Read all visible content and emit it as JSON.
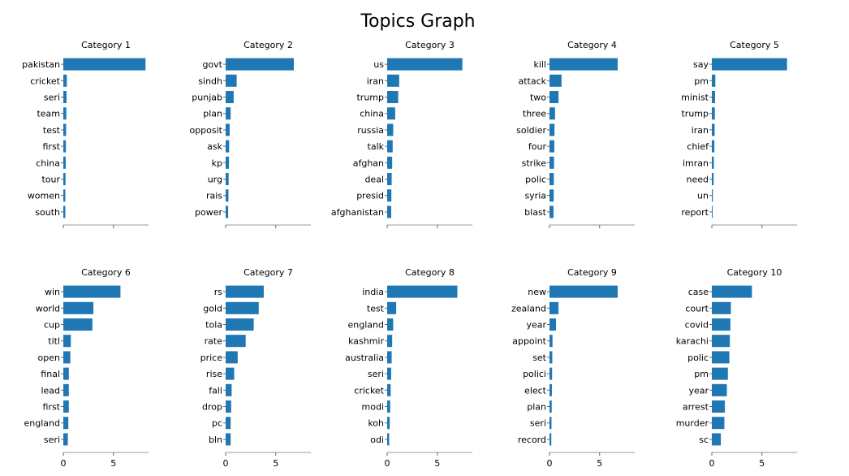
{
  "title": "Topics Graph",
  "chart_data": [
    {
      "type": "bar",
      "orientation": "horizontal",
      "title": "Category 1",
      "categories": [
        "pakistan",
        "cricket",
        "seri",
        "team",
        "test",
        "first",
        "china",
        "tour",
        "women",
        "south"
      ],
      "values": [
        8.2,
        0.35,
        0.32,
        0.3,
        0.28,
        0.26,
        0.24,
        0.22,
        0.2,
        0.2
      ],
      "xlim": [
        0,
        8.5
      ],
      "xticks": [
        0,
        5
      ],
      "xticklabels_shown": false
    },
    {
      "type": "bar",
      "orientation": "horizontal",
      "title": "Category 2",
      "categories": [
        "govt",
        "sindh",
        "punjab",
        "plan",
        "opposit",
        "ask",
        "kp",
        "urg",
        "rais",
        "power"
      ],
      "values": [
        6.8,
        1.1,
        0.8,
        0.5,
        0.4,
        0.35,
        0.33,
        0.3,
        0.28,
        0.25
      ],
      "xlim": [
        0,
        8.5
      ],
      "xticks": [
        0,
        5
      ],
      "xticklabels_shown": false
    },
    {
      "type": "bar",
      "orientation": "horizontal",
      "title": "Category 3",
      "categories": [
        "us",
        "iran",
        "trump",
        "china",
        "russia",
        "talk",
        "afghan",
        "deal",
        "presid",
        "afghanistan"
      ],
      "values": [
        7.5,
        1.2,
        1.1,
        0.8,
        0.6,
        0.55,
        0.5,
        0.45,
        0.42,
        0.4
      ],
      "xlim": [
        0,
        8.5
      ],
      "xticks": [
        0,
        5
      ],
      "xticklabels_shown": false
    },
    {
      "type": "bar",
      "orientation": "horizontal",
      "title": "Category 4",
      "categories": [
        "kill",
        "attack",
        "two",
        "three",
        "soldier",
        "four",
        "strike",
        "polic",
        "syria",
        "blast"
      ],
      "values": [
        6.8,
        1.2,
        0.9,
        0.55,
        0.5,
        0.48,
        0.45,
        0.43,
        0.42,
        0.4
      ],
      "xlim": [
        0,
        8.5
      ],
      "xticks": [
        0,
        5
      ],
      "xticklabels_shown": false
    },
    {
      "type": "bar",
      "orientation": "horizontal",
      "title": "Category 5",
      "categories": [
        "say",
        "pm",
        "minist",
        "trump",
        "iran",
        "chief",
        "imran",
        "need",
        "un",
        "report"
      ],
      "values": [
        7.5,
        0.35,
        0.32,
        0.3,
        0.28,
        0.25,
        0.2,
        0.18,
        0.1,
        0.08
      ],
      "xlim": [
        0,
        8.5
      ],
      "xticks": [
        0,
        5
      ],
      "xticklabels_shown": false
    },
    {
      "type": "bar",
      "orientation": "horizontal",
      "title": "Category 6",
      "categories": [
        "win",
        "world",
        "cup",
        "titl",
        "open",
        "final",
        "lead",
        "first",
        "england",
        "seri"
      ],
      "values": [
        5.7,
        3.0,
        2.9,
        0.75,
        0.7,
        0.55,
        0.55,
        0.55,
        0.5,
        0.45
      ],
      "xlim": [
        0,
        8.5
      ],
      "xticks": [
        0,
        5
      ],
      "xticklabels": [
        "0",
        "5"
      ]
    },
    {
      "type": "bar",
      "orientation": "horizontal",
      "title": "Category 7",
      "categories": [
        "rs",
        "gold",
        "tola",
        "rate",
        "price",
        "rise",
        "fall",
        "drop",
        "pc",
        "bln"
      ],
      "values": [
        3.8,
        3.3,
        2.8,
        2.0,
        1.2,
        0.85,
        0.6,
        0.55,
        0.5,
        0.5
      ],
      "xlim": [
        0,
        8.5
      ],
      "xticks": [
        0,
        5
      ],
      "xticklabels": [
        "0",
        "5"
      ]
    },
    {
      "type": "bar",
      "orientation": "horizontal",
      "title": "Category 8",
      "categories": [
        "india",
        "test",
        "england",
        "kashmir",
        "australia",
        "seri",
        "cricket",
        "modi",
        "koh",
        "odi"
      ],
      "values": [
        7.0,
        0.9,
        0.6,
        0.5,
        0.45,
        0.4,
        0.35,
        0.3,
        0.25,
        0.2
      ],
      "xlim": [
        0,
        8.5
      ],
      "xticks": [
        0,
        5
      ],
      "xticklabels": [
        "0",
        "5"
      ]
    },
    {
      "type": "bar",
      "orientation": "horizontal",
      "title": "Category 9",
      "categories": [
        "new",
        "zealand",
        "year",
        "appoint",
        "set",
        "polici",
        "elect",
        "plan",
        "seri",
        "record"
      ],
      "values": [
        6.8,
        0.9,
        0.65,
        0.3,
        0.28,
        0.26,
        0.24,
        0.22,
        0.2,
        0.18
      ],
      "xlim": [
        0,
        8.5
      ],
      "xticks": [
        0,
        5
      ],
      "xticklabels": [
        "0",
        "5"
      ]
    },
    {
      "type": "bar",
      "orientation": "horizontal",
      "title": "Category 10",
      "categories": [
        "case",
        "court",
        "covid",
        "karachi",
        "polic",
        "pm",
        "year",
        "arrest",
        "murder",
        "sc"
      ],
      "values": [
        4.0,
        1.9,
        1.85,
        1.8,
        1.75,
        1.6,
        1.5,
        1.3,
        1.25,
        0.9
      ],
      "xlim": [
        0,
        8.5
      ],
      "xticks": [
        0,
        5
      ],
      "xticklabels": [
        "0",
        "5"
      ]
    }
  ]
}
